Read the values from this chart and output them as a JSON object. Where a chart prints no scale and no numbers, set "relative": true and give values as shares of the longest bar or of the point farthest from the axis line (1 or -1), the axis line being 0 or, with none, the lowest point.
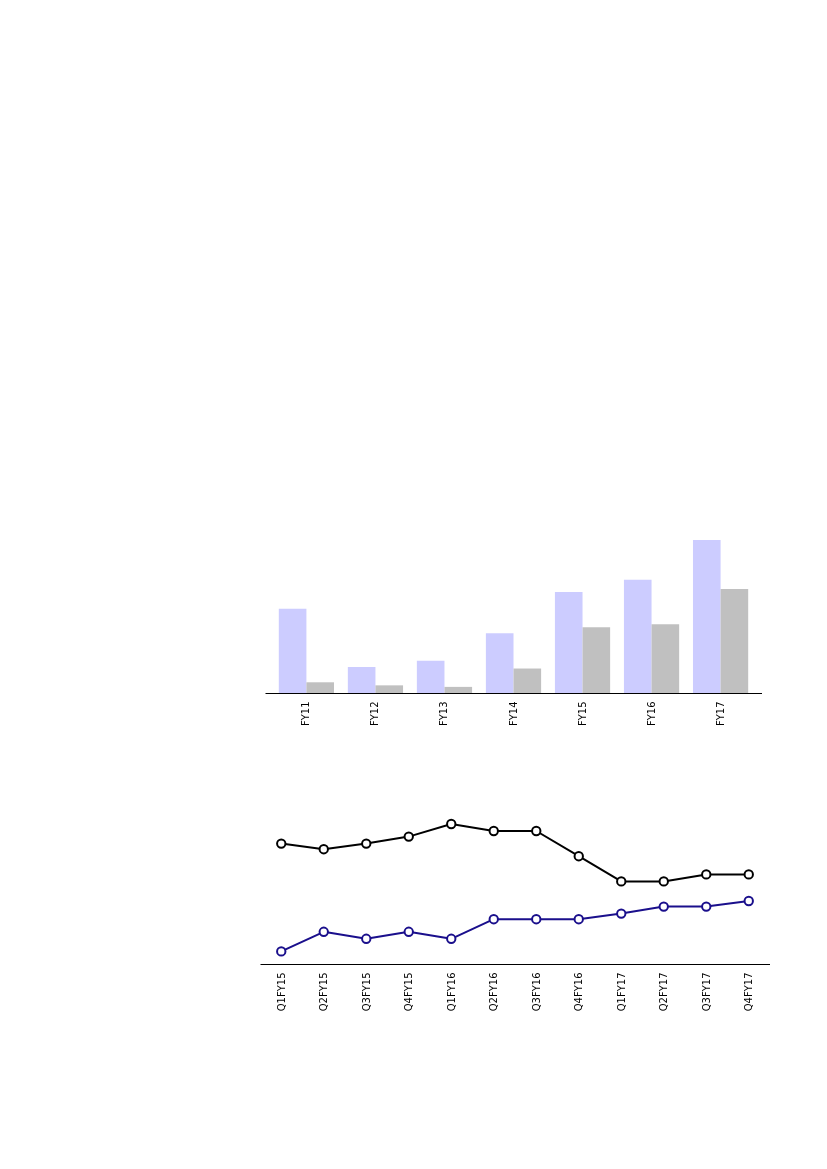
{
  "chart_data": [
    {
      "type": "bar",
      "relative": true,
      "categories": [
        "FY11",
        "FY12",
        "FY13",
        "FY14",
        "FY15",
        "FY16",
        "FY17"
      ],
      "series": [
        {
          "color": "#ccccff",
          "values": [
            0.55,
            0.17,
            0.21,
            0.39,
            0.66,
            0.74,
            1
          ]
        },
        {
          "color": "#c0c0c0",
          "values": [
            0.07,
            0.05,
            0.04,
            0.16,
            0.43,
            0.45,
            0.68
          ]
        }
      ],
      "grid": false
    },
    {
      "type": "line",
      "relative": true,
      "marker": "circle",
      "categories": [
        "Q1FY15",
        "Q2FY15",
        "Q3FY15",
        "Q4FY15",
        "Q1FY16",
        "Q2FY16",
        "Q3FY16",
        "Q4FY16",
        "Q1FY17",
        "Q2FY17",
        "Q3FY17",
        "Q4FY17"
      ],
      "series": [
        {
          "color": "#000000",
          "values": [
            0.86,
            0.82,
            0.86,
            0.91,
            1,
            0.95,
            0.95,
            0.77,
            0.59,
            0.59,
            0.64,
            0.64
          ]
        },
        {
          "color": "#1a0f8c",
          "values": [
            0.09,
            0.23,
            0.18,
            0.23,
            0.18,
            0.32,
            0.32,
            0.32,
            0.36,
            0.41,
            0.41,
            0.45
          ]
        }
      ],
      "grid": false
    }
  ]
}
